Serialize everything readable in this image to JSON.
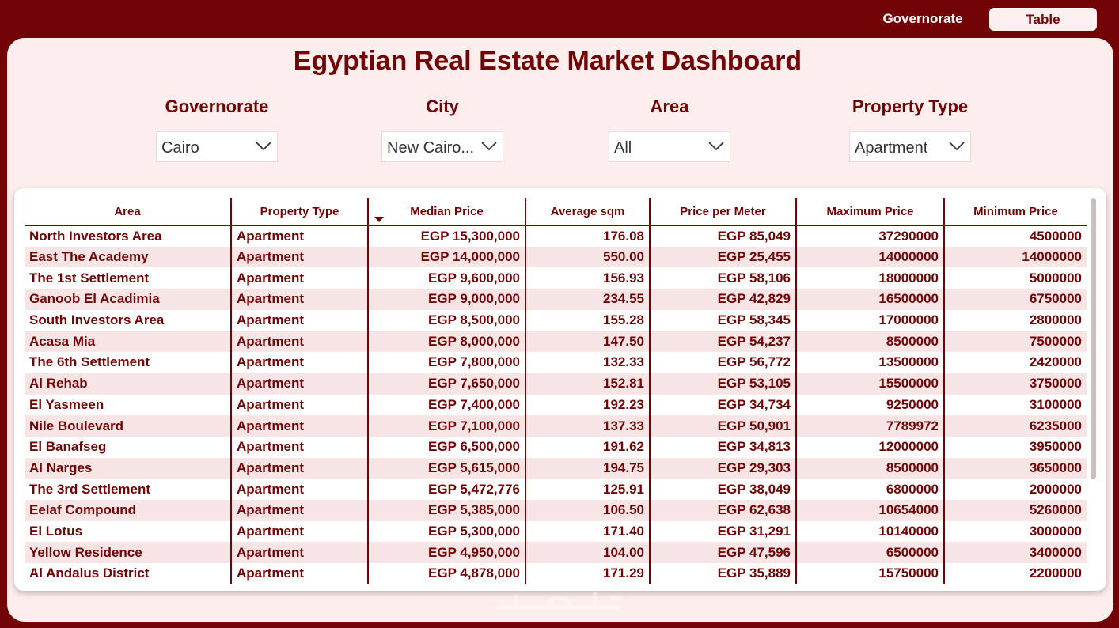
{
  "nav": {
    "governorate_label": "Governorate",
    "table_label": "Table"
  },
  "title": "Egyptian Real Estate Market Dashboard",
  "filters": [
    {
      "label": "Governorate",
      "value": "Cairo"
    },
    {
      "label": "City",
      "value": "New Cairo..."
    },
    {
      "label": "Area",
      "value": "All"
    },
    {
      "label": "Property Type",
      "value": "Apartment"
    }
  ],
  "table": {
    "columns": [
      "Area",
      "Property Type",
      "Median Price",
      "Average sqm",
      "Price per Meter",
      "Maximum Price",
      "Minimum Price"
    ],
    "sorted_column": "Median Price",
    "sort_direction": "descending",
    "rows": [
      [
        "North Investors Area",
        "Apartment",
        "EGP 15,300,000",
        "176.08",
        "EGP 85,049",
        "37290000",
        "4500000"
      ],
      [
        "East The Academy",
        "Apartment",
        "EGP 14,000,000",
        "550.00",
        "EGP 25,455",
        "14000000",
        "14000000"
      ],
      [
        "The 1st Settlement",
        "Apartment",
        "EGP 9,600,000",
        "156.93",
        "EGP 58,106",
        "18000000",
        "5000000"
      ],
      [
        "Ganoob El Acadimia",
        "Apartment",
        "EGP 9,000,000",
        "234.55",
        "EGP 42,829",
        "16500000",
        "6750000"
      ],
      [
        "South Investors Area",
        "Apartment",
        "EGP 8,500,000",
        "155.28",
        "EGP 58,345",
        "17000000",
        "2800000"
      ],
      [
        "Acasa Mia",
        "Apartment",
        "EGP 8,000,000",
        "147.50",
        "EGP 54,237",
        "8500000",
        "7500000"
      ],
      [
        "The 6th Settlement",
        "Apartment",
        "EGP 7,800,000",
        "132.33",
        "EGP 56,772",
        "13500000",
        "2420000"
      ],
      [
        "Al Rehab",
        "Apartment",
        "EGP 7,650,000",
        "152.81",
        "EGP 53,105",
        "15500000",
        "3750000"
      ],
      [
        "El Yasmeen",
        "Apartment",
        "EGP 7,400,000",
        "192.23",
        "EGP 34,734",
        "9250000",
        "3100000"
      ],
      [
        "Nile Boulevard",
        "Apartment",
        "EGP 7,100,000",
        "137.33",
        "EGP 50,901",
        "7789972",
        "6235000"
      ],
      [
        "El Banafseg",
        "Apartment",
        "EGP 6,500,000",
        "191.62",
        "EGP 34,813",
        "12000000",
        "3950000"
      ],
      [
        "Al Narges",
        "Apartment",
        "EGP 5,615,000",
        "194.75",
        "EGP 29,303",
        "8500000",
        "3650000"
      ],
      [
        "The 3rd Settlement",
        "Apartment",
        "EGP 5,472,776",
        "125.91",
        "EGP 38,049",
        "6800000",
        "2000000"
      ],
      [
        "Eelaf Compound",
        "Apartment",
        "EGP 5,385,000",
        "106.50",
        "EGP 62,638",
        "10654000",
        "5260000"
      ],
      [
        "El Lotus",
        "Apartment",
        "EGP 5,300,000",
        "171.40",
        "EGP 31,291",
        "10140000",
        "3000000"
      ],
      [
        "Yellow Residence",
        "Apartment",
        "EGP 4,950,000",
        "104.00",
        "EGP 47,596",
        "6500000",
        "3400000"
      ],
      [
        "Al Andalus District",
        "Apartment",
        "EGP 4,878,000",
        "171.29",
        "EGP 35,889",
        "15750000",
        "2200000"
      ]
    ]
  },
  "colors": {
    "brand": "#720405",
    "panel": "#fdeeee",
    "row_alt": "#f7e5e5"
  }
}
